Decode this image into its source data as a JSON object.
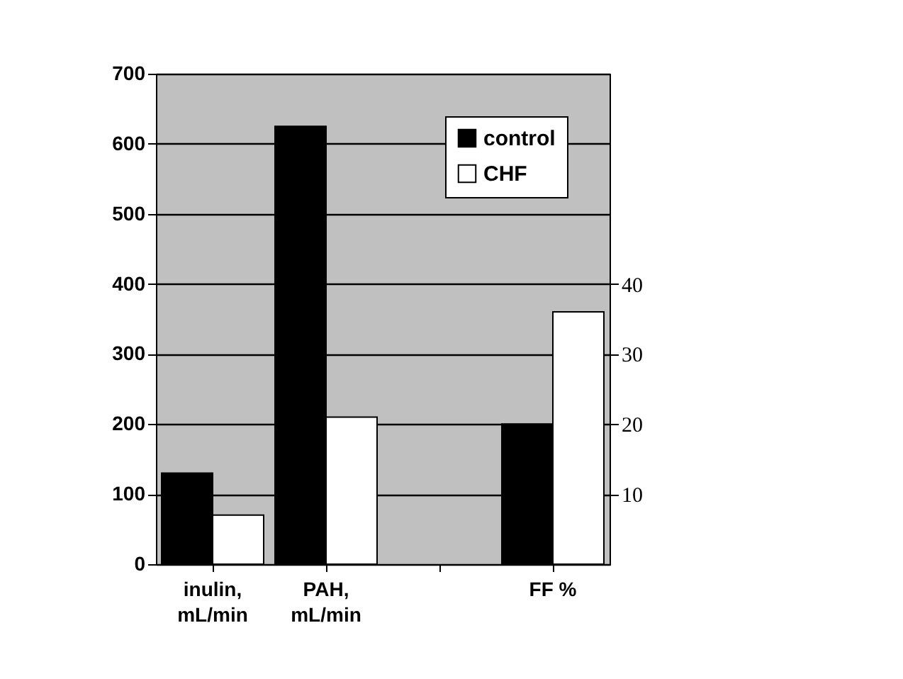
{
  "chart_data": {
    "type": "bar",
    "categories": [
      "inulin,\nmL/min",
      "PAH,\nmL/min",
      null,
      "FF %"
    ],
    "series": [
      {
        "name": "control",
        "color": "#000000",
        "values": [
          130,
          625,
          null,
          null
        ]
      },
      {
        "name": "CHF",
        "color": "#ffffff",
        "values": [
          70,
          210,
          null,
          null
        ]
      },
      {
        "color": "#000000",
        "axis": "y2",
        "values": [
          null,
          null,
          null,
          20
        ]
      },
      {
        "color": "#ffffff",
        "axis": "y2",
        "values": [
          null,
          null,
          null,
          36
        ]
      }
    ],
    "ylim": [
      0,
      700
    ],
    "yticks": [
      0,
      100,
      200,
      300,
      400,
      500,
      600,
      700
    ],
    "y2lim": [
      0,
      70
    ],
    "y2ticks": [
      10,
      20,
      30,
      40
    ],
    "grid": "y",
    "legend": "top right"
  }
}
